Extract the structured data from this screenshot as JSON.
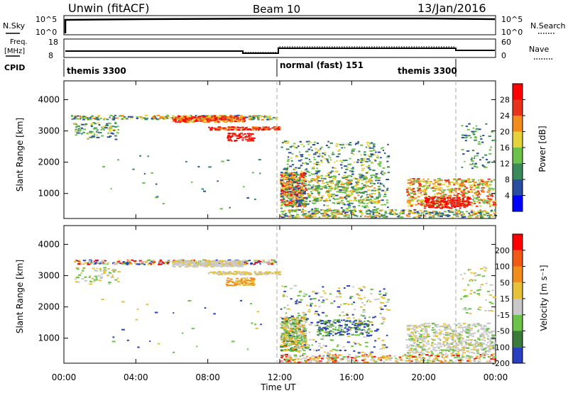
{
  "header": {
    "title": "Unwin (fitACF)",
    "beam": "Beam 10",
    "date": "13/Jan/2016"
  },
  "panels": {
    "nsky": {
      "left_label": "N.Sky",
      "right_label": "N.Search",
      "left_ticks": [
        "10^5",
        "10^0"
      ],
      "right_ticks": [
        "10^5",
        "10^0"
      ]
    },
    "freq": {
      "left_label_line1": "Freq.",
      "left_label_line2": "[MHz]",
      "right_label": "Nave",
      "left_ticks": [
        "18",
        "8"
      ],
      "right_ticks": [
        "60",
        "0"
      ]
    },
    "cpid": {
      "label": "CPID",
      "segments": [
        "themis 3300",
        "normal (fast) 151",
        "themis 3300"
      ]
    }
  },
  "chart_data": [
    {
      "type": "heatmap",
      "name": "power",
      "ylabel": "Slant Range [km]",
      "yticks": [
        "4000",
        "3000",
        "2000",
        "1000"
      ],
      "ylim": [
        200,
        4600
      ],
      "colorbar_label": "Power [dB]",
      "colorbar_ticks": [
        "28",
        "24",
        "20",
        "16",
        "12",
        "8",
        "4"
      ],
      "colorbar_colors": [
        "#0000ff",
        "#2a4ca0",
        "#3b8a5c",
        "#6cc24a",
        "#e6d23a",
        "#f28c1c",
        "#e8321c",
        "#ff0000"
      ],
      "clim": [
        0,
        32
      ]
    },
    {
      "type": "heatmap",
      "name": "velocity",
      "ylabel": "Slant Range [km]",
      "yticks": [
        "4000",
        "3000",
        "2000",
        "1000"
      ],
      "ylim": [
        200,
        4600
      ],
      "colorbar_label": "Velocity [m s⁻¹]",
      "colorbar_ticks": [
        "200",
        "100",
        "50",
        "15",
        "-15",
        "-50",
        "-100",
        "-200"
      ],
      "colorbar_colors": [
        "#2a3fbf",
        "#3a7a3a",
        "#6cc24a",
        "#c8c8c8",
        "#e6c23a",
        "#f28c1c",
        "#f05a14",
        "#ff0000"
      ]
    }
  ],
  "time_axis": {
    "xlabel": "Time UT",
    "ticks": [
      "00:00",
      "04:00",
      "08:00",
      "12:00",
      "16:00",
      "20:00",
      "00:00"
    ]
  }
}
